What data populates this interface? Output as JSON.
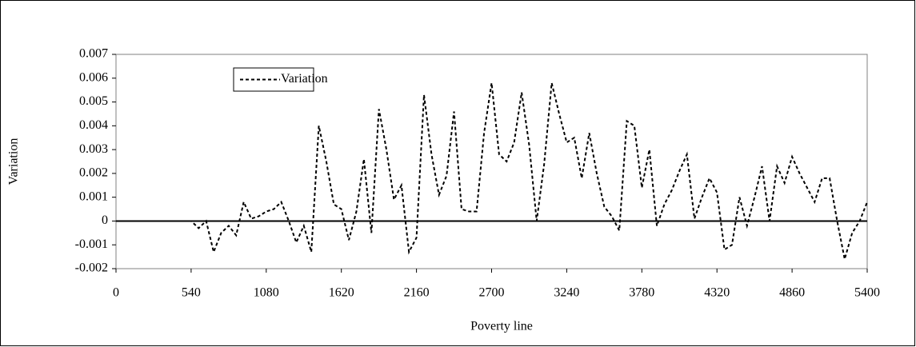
{
  "chart_data": {
    "type": "line",
    "xlabel": "Poverty line",
    "ylabel": "Variation",
    "x": [
      0,
      54,
      108,
      162,
      216,
      270,
      324,
      378,
      432,
      486,
      540,
      594,
      648,
      702,
      756,
      810,
      864,
      918,
      972,
      1026,
      1080,
      1134,
      1188,
      1242,
      1296,
      1350,
      1404,
      1458,
      1512,
      1566,
      1620,
      1674,
      1728,
      1782,
      1836,
      1890,
      1944,
      1998,
      2052,
      2106,
      2160,
      2214,
      2268,
      2322,
      2376,
      2430,
      2484,
      2538,
      2592,
      2646,
      2700,
      2754,
      2808,
      2862,
      2916,
      2970,
      3024,
      3078,
      3132,
      3186,
      3240,
      3294,
      3348,
      3402,
      3456,
      3510,
      3564,
      3618,
      3672,
      3726,
      3780,
      3834,
      3888,
      3942,
      3996,
      4050,
      4104,
      4158,
      4212,
      4266,
      4320,
      4374,
      4428,
      4482,
      4536,
      4590,
      4644,
      4698,
      4752,
      4806,
      4860,
      4914,
      4968,
      5022,
      5076,
      5130,
      5184,
      5238,
      5292,
      5346,
      5400
    ],
    "series": [
      {
        "name": "Variation",
        "color": "#000000",
        "dashed": true,
        "values": [
          0,
          0,
          0,
          0,
          0,
          0,
          0,
          0,
          0,
          0,
          0,
          -0.0003,
          0,
          -0.0013,
          -0.0005,
          -0.0002,
          -0.0006,
          0.0008,
          0.0001,
          0.0002,
          0.0004,
          0.0005,
          0.0008,
          0,
          -0.0009,
          -0.0002,
          -0.0013,
          0.004,
          0.0025,
          0.0007,
          0.0005,
          -0.0008,
          0.0004,
          0.0026,
          -0.0005,
          0.0047,
          0.003,
          0.0009,
          0.0015,
          -0.0013,
          -0.0007,
          0.0053,
          0.0028,
          0.0011,
          0.0019,
          0.0046,
          0.0005,
          0.0004,
          0.0004,
          0.0037,
          0.0058,
          0.0028,
          0.0025,
          0.0033,
          0.0054,
          0.0032,
          0,
          0.0024,
          0.0058,
          0.0045,
          0.0033,
          0.0035,
          0.0018,
          0.0037,
          0.002,
          0.0006,
          0.0002,
          -0.0004,
          0.0042,
          0.004,
          0.0014,
          0.003,
          -0.0002,
          0.0007,
          0.0013,
          0.0021,
          0.0028,
          0.0001,
          0.001,
          0.0018,
          0.0012,
          -0.0012,
          -0.001,
          0.001,
          -0.0002,
          0.001,
          0.0023,
          0,
          0.0023,
          0.0016,
          0.0027,
          0.002,
          0.0014,
          0.0008,
          0.0018,
          0.0018,
          0,
          -0.0016,
          -0.0005,
          0,
          0.0008
        ]
      }
    ],
    "xlim": [
      0,
      5400
    ],
    "xticks": [
      0,
      540,
      1080,
      1620,
      2160,
      2700,
      3240,
      3780,
      4320,
      4860,
      5400
    ],
    "ylim": [
      -0.002,
      0.007
    ],
    "yticks": [
      -0.002,
      -0.001,
      0,
      0.001,
      0.002,
      0.003,
      0.004,
      0.005,
      0.006,
      0.007
    ],
    "grid": false,
    "legend": "upper left"
  }
}
